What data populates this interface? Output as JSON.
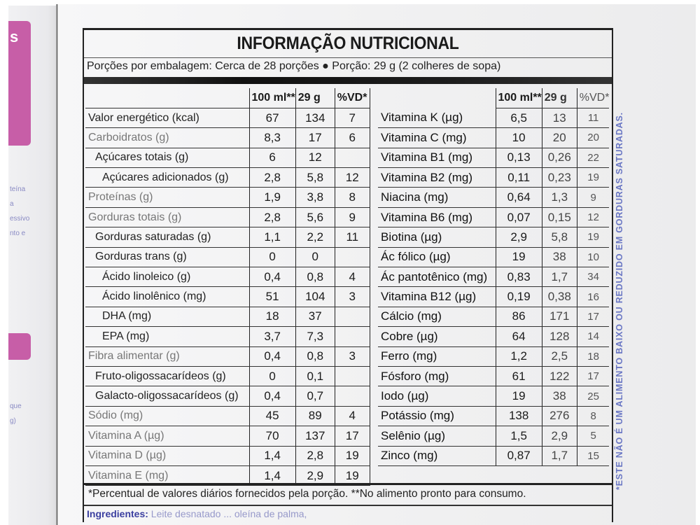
{
  "label": {
    "title": "INFORMAÇÃO NUTRICIONAL",
    "servings_line": "Porções por embalagem: Cerca de 28 porções ● Porção: 29 g (2 colheres de sopa)",
    "columns": {
      "per_100ml": "100 ml**",
      "per_portion": "29 g",
      "vd": "%VD*"
    },
    "left_rows": [
      {
        "name": "Valor energético (kcal)",
        "per_100ml": "67",
        "per_portion": "134",
        "vd": "7",
        "indent": 0
      },
      {
        "name": "Carboidratos (g)",
        "per_100ml": "8,3",
        "per_portion": "17",
        "vd": "6",
        "indent": 0
      },
      {
        "name": "Açúcares totais (g)",
        "per_100ml": "6",
        "per_portion": "12",
        "vd": "",
        "indent": 1
      },
      {
        "name": "Açúcares adicionados (g)",
        "per_100ml": "2,8",
        "per_portion": "5,8",
        "vd": "12",
        "indent": 2
      },
      {
        "name": "Proteínas (g)",
        "per_100ml": "1,9",
        "per_portion": "3,8",
        "vd": "8",
        "indent": 0
      },
      {
        "name": "Gorduras totais (g)",
        "per_100ml": "2,8",
        "per_portion": "5,6",
        "vd": "9",
        "indent": 0
      },
      {
        "name": "Gorduras saturadas (g)",
        "per_100ml": "1,1",
        "per_portion": "2,2",
        "vd": "11",
        "indent": 1
      },
      {
        "name": "Gorduras trans (g)",
        "per_100ml": "0",
        "per_portion": "0",
        "vd": "",
        "indent": 1
      },
      {
        "name": "Ácido linoleico (g)",
        "per_100ml": "0,4",
        "per_portion": "0,8",
        "vd": "4",
        "indent": 2
      },
      {
        "name": "Ácido linolênico (mg)",
        "per_100ml": "51",
        "per_portion": "104",
        "vd": "3",
        "indent": 2
      },
      {
        "name": "DHA (mg)",
        "per_100ml": "18",
        "per_portion": "37",
        "vd": "",
        "indent": 2
      },
      {
        "name": "EPA (mg)",
        "per_100ml": "3,7",
        "per_portion": "7,3",
        "vd": "",
        "indent": 2
      },
      {
        "name": "Fibra alimentar (g)",
        "per_100ml": "0,4",
        "per_portion": "0,8",
        "vd": "3",
        "indent": 0
      },
      {
        "name": "Fruto-oligossacarídeos (g)",
        "per_100ml": "0",
        "per_portion": "0,1",
        "vd": "",
        "indent": 1
      },
      {
        "name": "Galacto-oligossacarídeos (g)",
        "per_100ml": "0,4",
        "per_portion": "0,7",
        "vd": "",
        "indent": 1
      },
      {
        "name": "Sódio (mg)",
        "per_100ml": "45",
        "per_portion": "89",
        "vd": "4",
        "indent": 0
      },
      {
        "name": "Vitamina A (µg)",
        "per_100ml": "70",
        "per_portion": "137",
        "vd": "17",
        "indent": 0
      },
      {
        "name": "Vitamina D (µg)",
        "per_100ml": "1,4",
        "per_portion": "2,8",
        "vd": "19",
        "indent": 0
      },
      {
        "name": "Vitamina E (mg)",
        "per_100ml": "1,4",
        "per_portion": "2,9",
        "vd": "19",
        "indent": 0
      }
    ],
    "right_rows": [
      {
        "name": "Vitamina K (µg)",
        "per_100ml": "6,5",
        "per_portion": "13",
        "vd": "11"
      },
      {
        "name": "Vitamina C (mg)",
        "per_100ml": "10",
        "per_portion": "20",
        "vd": "20"
      },
      {
        "name": "Vitamina B1 (mg)",
        "per_100ml": "0,13",
        "per_portion": "0,26",
        "vd": "22"
      },
      {
        "name": "Vitamina B2 (mg)",
        "per_100ml": "0,11",
        "per_portion": "0,23",
        "vd": "19"
      },
      {
        "name": "Niacina (mg)",
        "per_100ml": "0,64",
        "per_portion": "1,3",
        "vd": "9"
      },
      {
        "name": "Vitamina B6 (mg)",
        "per_100ml": "0,07",
        "per_portion": "0,15",
        "vd": "12"
      },
      {
        "name": "Biotina (µg)",
        "per_100ml": "2,9",
        "per_portion": "5,8",
        "vd": "19"
      },
      {
        "name": "Ác fólico (µg)",
        "per_100ml": "19",
        "per_portion": "38",
        "vd": "10"
      },
      {
        "name": "Ác pantotênico (mg)",
        "per_100ml": "0,83",
        "per_portion": "1,7",
        "vd": "34"
      },
      {
        "name": "Vitamina B12 (µg)",
        "per_100ml": "0,19",
        "per_portion": "0,38",
        "vd": "16"
      },
      {
        "name": "Cálcio (mg)",
        "per_100ml": "86",
        "per_portion": "171",
        "vd": "17"
      },
      {
        "name": "Cobre (µg)",
        "per_100ml": "64",
        "per_portion": "128",
        "vd": "14"
      },
      {
        "name": "Ferro (mg)",
        "per_100ml": "1,2",
        "per_portion": "2,5",
        "vd": "18"
      },
      {
        "name": "Fósforo (mg)",
        "per_100ml": "61",
        "per_portion": "122",
        "vd": "17"
      },
      {
        "name": "Iodo (µg)",
        "per_100ml": "19",
        "per_portion": "38",
        "vd": "25"
      },
      {
        "name": "Potássio (mg)",
        "per_100ml": "138",
        "per_portion": "276",
        "vd": "8"
      },
      {
        "name": "Selênio (µg)",
        "per_100ml": "1,5",
        "per_portion": "2,9",
        "vd": "5"
      },
      {
        "name": "Zinco (mg)",
        "per_100ml": "0,87",
        "per_portion": "1,7",
        "vd": "15"
      }
    ],
    "footnote": "*Percentual de valores diários fornecidos pela porção. **No alimento pronto para consumo.",
    "ingredients_label": "Ingredientes:",
    "ingredients_partial": "Leite desnatado ... oleína de palma,"
  },
  "side_note": "*ESTE NÃO É UM ALIMENTO BAIXO OU REDUZIDO EM GORDURAS SATURADAS.",
  "left_panel": {
    "tab_letter": "s",
    "text_fragments_a": [
      "teína",
      "a",
      "essivo",
      "nto e"
    ],
    "text_fragments_b": [
      "que",
      "g)"
    ]
  },
  "colors": {
    "ink": "#1a1a1a",
    "accent_blue": "#6a77c4",
    "accent_pink": "#c0449a",
    "paper": "#f2f2f3"
  }
}
